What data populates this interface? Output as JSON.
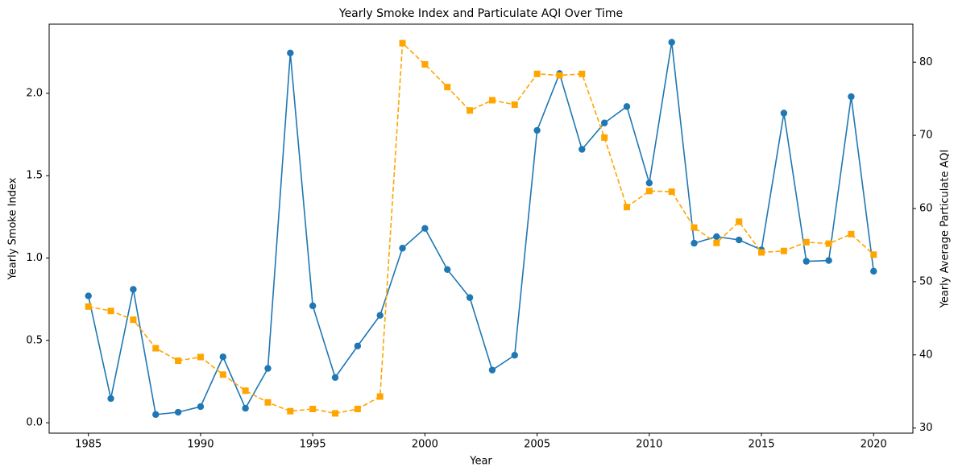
{
  "chart_data": {
    "type": "line",
    "title": "Yearly Smoke Index and Particulate AQI Over Time",
    "xlabel": "Year",
    "ylabel": "Yearly Smoke Index",
    "y2label": "Yearly Average Particulate AQI",
    "ylabel_color": "blue",
    "y2label_color": "orange",
    "x": [
      1985,
      1986,
      1987,
      1988,
      1989,
      1990,
      1991,
      1992,
      1993,
      1994,
      1995,
      1996,
      1997,
      1998,
      1999,
      2000,
      2001,
      2002,
      2003,
      2004,
      2005,
      2006,
      2007,
      2008,
      2009,
      2010,
      2011,
      2012,
      2013,
      2014,
      2015,
      2016,
      2017,
      2018,
      2019,
      2020
    ],
    "series": [
      {
        "color": "#1f77b4",
        "marker": "circle",
        "linestyle": "solid",
        "axis": "y",
        "values": [
          0.77,
          0.147,
          0.81,
          0.05,
          0.064,
          0.098,
          0.4,
          0.088,
          0.33,
          2.245,
          0.71,
          0.275,
          0.466,
          0.652,
          1.06,
          1.18,
          0.93,
          0.76,
          0.32,
          0.41,
          1.775,
          2.12,
          1.66,
          1.82,
          1.92,
          1.456,
          2.31,
          1.09,
          1.13,
          1.11,
          1.05,
          1.88,
          0.98,
          0.985,
          1.98,
          0.92
        ]
      },
      {
        "color": "orange",
        "marker": "square",
        "linestyle": "dashed",
        "axis": "y2",
        "values": [
          46.6,
          46.0,
          44.8,
          40.9,
          39.2,
          39.7,
          37.3,
          35.1,
          33.5,
          32.3,
          32.6,
          32.0,
          32.6,
          34.3,
          82.6,
          79.7,
          76.6,
          73.4,
          74.8,
          74.2,
          78.4,
          78.2,
          78.4,
          69.7,
          60.2,
          62.4,
          62.3,
          57.4,
          55.3,
          58.2,
          54.0,
          54.2,
          55.4,
          55.2,
          56.5,
          53.7
        ]
      }
    ],
    "xlim": [
      1983.25,
      2021.75
    ],
    "xticks": [
      1985,
      1990,
      1995,
      2000,
      2005,
      2010,
      2015,
      2020
    ],
    "ylim": [
      -0.063,
      2.42
    ],
    "yticks": [
      {
        "value": 0,
        "label": "0.0"
      },
      0.5,
      {
        "value": 1,
        "label": "1.0"
      },
      1.5,
      {
        "value": 2,
        "label": "2.0"
      }
    ],
    "y2lim": [
      29.3,
      85.2
    ],
    "y2ticks": [
      30,
      40,
      50,
      60,
      70,
      80
    ],
    "grid": false
  }
}
